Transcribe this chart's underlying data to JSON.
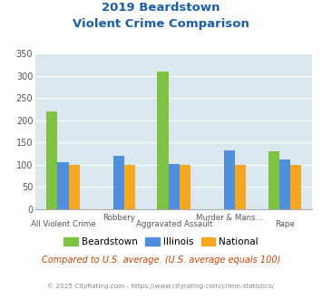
{
  "title_line1": "2019 Beardstown",
  "title_line2": "Violent Crime Comparison",
  "categories": [
    "All Violent Crime",
    "Robbery",
    "Aggravated Assault",
    "Murder & Mans...",
    "Rape"
  ],
  "categories_row1": [
    "",
    "Robbery",
    "",
    "Murder & Mans...",
    ""
  ],
  "categories_row2": [
    "All Violent Crime",
    "",
    "Aggravated Assault",
    "",
    "Rape"
  ],
  "beardstown": [
    220,
    0,
    310,
    0,
    130
  ],
  "illinois": [
    107,
    120,
    103,
    132,
    112
  ],
  "national": [
    100,
    100,
    100,
    100,
    100
  ],
  "color_beardstown": "#7dc242",
  "color_illinois": "#4f8fdb",
  "color_national": "#f5a623",
  "ylim": [
    0,
    350
  ],
  "yticks": [
    0,
    50,
    100,
    150,
    200,
    250,
    300,
    350
  ],
  "bg_color": "#dce8f0",
  "title_color": "#1a5fa8",
  "subtitle_text": "Compared to U.S. average. (U.S. average equals 100)",
  "subtitle_color": "#cc4400",
  "footer_text": "© 2025 CityRating.com - https://www.cityrating.com/crime-statistics/",
  "footer_color": "#888888",
  "legend_labels": [
    "Beardstown",
    "Illinois",
    "National"
  ]
}
